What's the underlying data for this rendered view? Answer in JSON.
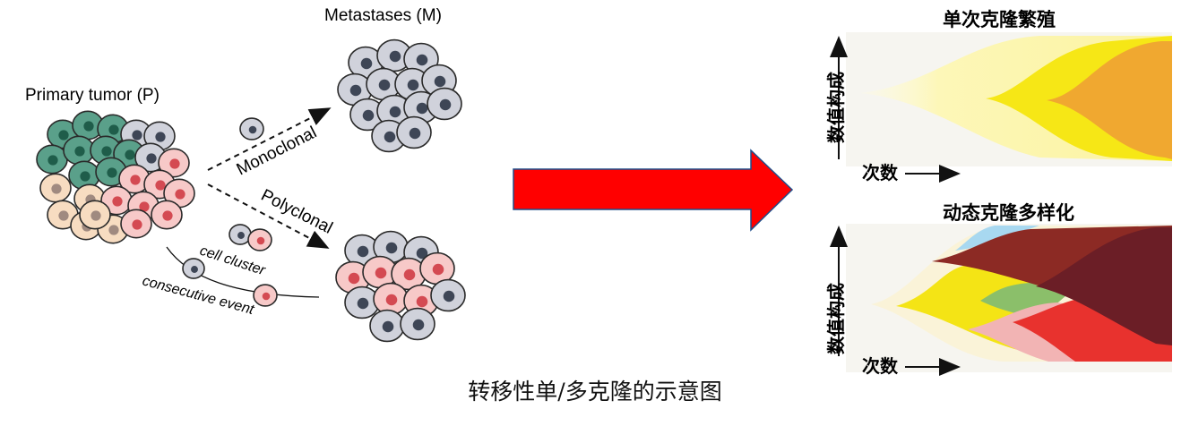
{
  "left": {
    "primary_title": "Primary tumor (P)",
    "metastases_title": "Metastases (M)",
    "path_monoclonal": "Monoclonal",
    "path_polyclonal": "Polyclonal",
    "note_cluster": "cell cluster",
    "note_consecutive": "consecutive event"
  },
  "right": {
    "panel_top_title": "单次克隆繁殖",
    "panel_bottom_title": "动态克隆多样化",
    "y_axis_label": "数值构成",
    "x_axis_label": "次数"
  },
  "caption": "转移性单/多克隆的示意图",
  "colors": {
    "arrow_red": "#ff0000",
    "cell_green": "#5aa08a",
    "cell_grey": "#d0d2db",
    "cell_pink": "#f7c9c8",
    "cell_peach": "#f7dcc1",
    "clone_yellow": "#f4e415",
    "clone_orange": "#f0a830",
    "clone_maroon": "#6b1e26",
    "clone_brown": "#8c2a24",
    "clone_red": "#e8322e",
    "clone_green": "#8bbf6a",
    "clone_pink": "#f2b4b4",
    "clone_blue": "#a8d8f0"
  }
}
